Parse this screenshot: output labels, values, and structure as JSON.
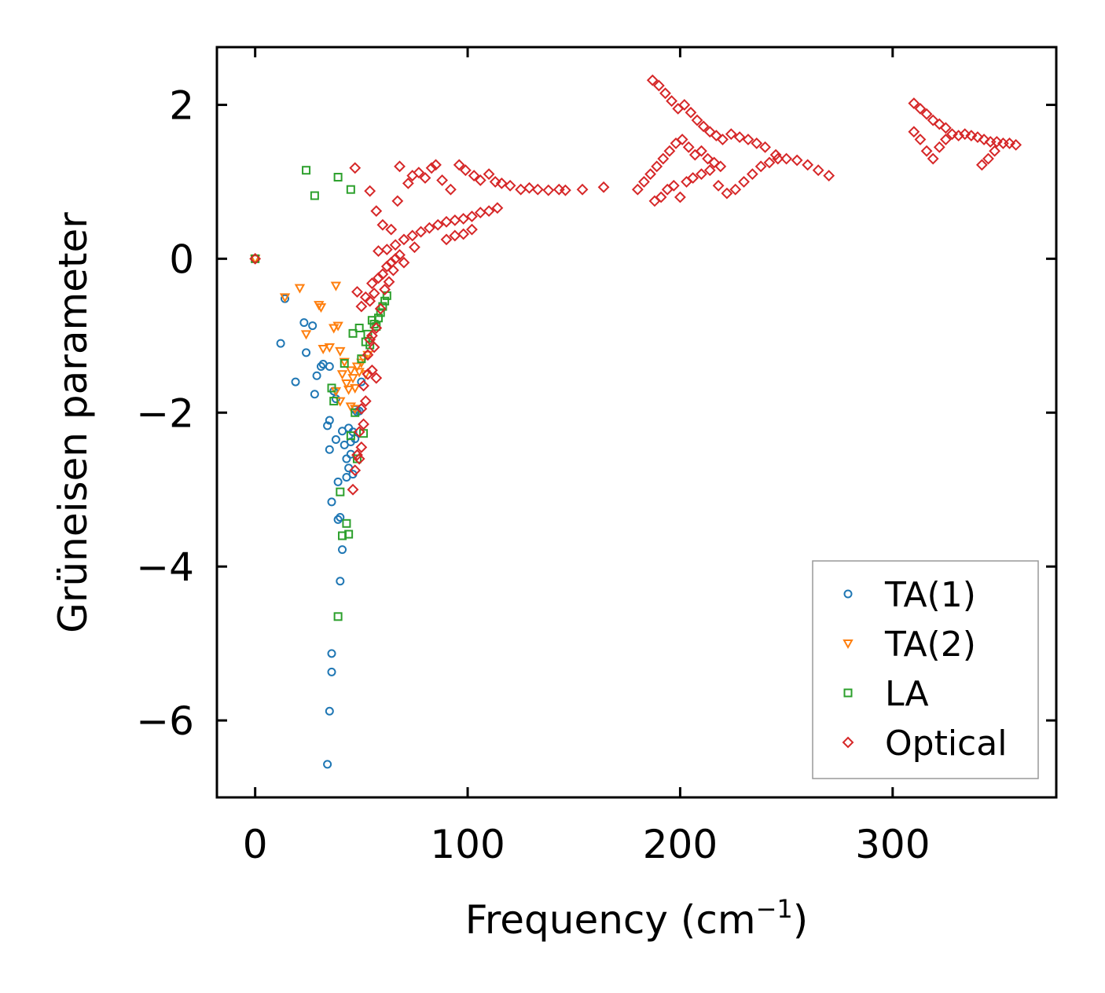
{
  "chart_data": {
    "type": "scatter",
    "xlabel": "Frequency (cm",
    "xlabel_sup": "−1",
    "xlabel_close": ")",
    "ylabel": "Grüneisen parameter",
    "xlim": [
      -18,
      377
    ],
    "ylim": [
      -7.0,
      2.75
    ],
    "xticks": [
      0,
      100,
      200,
      300
    ],
    "xtick_labels": [
      "0",
      "100",
      "200",
      "300"
    ],
    "yticks": [
      -6,
      -4,
      -2,
      0,
      2
    ],
    "ytick_labels": [
      "−6",
      "−4",
      "−2",
      "0",
      "2"
    ],
    "legend_position": "lower-right",
    "series": [
      {
        "name": "TA(1)",
        "marker": "circle",
        "color": "#1f77b4",
        "points": [
          [
            0,
            0
          ],
          [
            12,
            -1.1
          ],
          [
            14,
            -0.52
          ],
          [
            19,
            -1.6
          ],
          [
            23,
            -0.83
          ],
          [
            24,
            -1.22
          ],
          [
            27,
            -0.87
          ],
          [
            28,
            -1.76
          ],
          [
            29,
            -1.52
          ],
          [
            31,
            -1.4
          ],
          [
            32,
            -1.37
          ],
          [
            34,
            -2.17
          ],
          [
            35,
            -2.1
          ],
          [
            35,
            -1.4
          ],
          [
            35,
            -2.48
          ],
          [
            36,
            -3.16
          ],
          [
            36,
            -5.13
          ],
          [
            36,
            -5.37
          ],
          [
            35,
            -5.88
          ],
          [
            34,
            -6.57
          ],
          [
            37,
            -1.72
          ],
          [
            38,
            -1.82
          ],
          [
            38,
            -2.35
          ],
          [
            39,
            -2.9
          ],
          [
            39,
            -3.39
          ],
          [
            40,
            -3.36
          ],
          [
            40,
            -4.19
          ],
          [
            41,
            -3.78
          ],
          [
            41,
            -2.24
          ],
          [
            42,
            -2.42
          ],
          [
            43,
            -2.6
          ],
          [
            43,
            -2.84
          ],
          [
            44,
            -2.72
          ],
          [
            44,
            -2.2
          ],
          [
            45,
            -2.38
          ],
          [
            45,
            -2.54
          ],
          [
            46,
            -2.8
          ],
          [
            46,
            -2.25
          ],
          [
            47,
            -1.96
          ],
          [
            47,
            -2.34
          ],
          [
            48,
            -1.99
          ],
          [
            49,
            -1.98
          ],
          [
            50,
            -1.6
          ]
        ]
      },
      {
        "name": "TA(2)",
        "marker": "triangle-down",
        "color": "#ff7f0e",
        "points": [
          [
            0,
            0
          ],
          [
            14,
            -0.5
          ],
          [
            21,
            -0.38
          ],
          [
            24,
            -0.98
          ],
          [
            30,
            -0.6
          ],
          [
            31,
            -0.63
          ],
          [
            32,
            -1.17
          ],
          [
            35,
            -1.15
          ],
          [
            37,
            -0.9
          ],
          [
            38,
            -0.35
          ],
          [
            39,
            -0.87
          ],
          [
            40,
            -1.2
          ],
          [
            41,
            -1.5
          ],
          [
            42,
            -1.34
          ],
          [
            38,
            -1.72
          ],
          [
            40,
            -1.85
          ],
          [
            43,
            -1.62
          ],
          [
            44,
            -1.7
          ],
          [
            45,
            -1.45
          ],
          [
            46,
            -1.55
          ],
          [
            47,
            -1.68
          ],
          [
            48,
            -1.4
          ],
          [
            49,
            -1.47
          ],
          [
            50,
            -1.35
          ],
          [
            51,
            -1.3
          ],
          [
            52,
            -1.5
          ],
          [
            53,
            -1.25
          ],
          [
            45,
            -1.92
          ],
          [
            47,
            -1.95
          ]
        ]
      },
      {
        "name": "LA",
        "marker": "square",
        "color": "#2ca02c",
        "points": [
          [
            0,
            0
          ],
          [
            24,
            1.15
          ],
          [
            28,
            0.82
          ],
          [
            39,
            1.06
          ],
          [
            45,
            0.9
          ],
          [
            36,
            -1.68
          ],
          [
            37,
            -1.85
          ],
          [
            40,
            -3.03
          ],
          [
            41,
            -3.6
          ],
          [
            43,
            -3.44
          ],
          [
            44,
            -3.58
          ],
          [
            39,
            -4.65
          ],
          [
            42,
            -1.36
          ],
          [
            46,
            -0.97
          ],
          [
            49,
            -0.9
          ],
          [
            50,
            -1.3
          ],
          [
            51,
            -2.27
          ],
          [
            52,
            -1.08
          ],
          [
            53,
            -0.98
          ],
          [
            54,
            -1.12
          ],
          [
            55,
            -0.8
          ],
          [
            56,
            -0.85
          ],
          [
            57,
            -0.88
          ],
          [
            58,
            -0.77
          ],
          [
            59,
            -0.7
          ],
          [
            60,
            -0.62
          ],
          [
            61,
            -0.55
          ],
          [
            62,
            -0.48
          ],
          [
            47,
            -2.0
          ],
          [
            48,
            -2.6
          ],
          [
            45,
            -2.3
          ]
        ]
      },
      {
        "name": "Optical",
        "marker": "diamond",
        "color": "#d62728",
        "points": [
          [
            0,
            0
          ],
          [
            47,
            1.18
          ],
          [
            54,
            0.88
          ],
          [
            57,
            0.62
          ],
          [
            60,
            0.44
          ],
          [
            64,
            0.38
          ],
          [
            67,
            0.75
          ],
          [
            68,
            1.2
          ],
          [
            72,
            0.98
          ],
          [
            74,
            1.08
          ],
          [
            77,
            1.12
          ],
          [
            80,
            1.05
          ],
          [
            83,
            1.18
          ],
          [
            85,
            1.22
          ],
          [
            88,
            1.02
          ],
          [
            92,
            0.9
          ],
          [
            96,
            1.22
          ],
          [
            99,
            1.15
          ],
          [
            103,
            1.08
          ],
          [
            106,
            1.02
          ],
          [
            110,
            1.1
          ],
          [
            113,
            1.0
          ],
          [
            116,
            0.98
          ],
          [
            120,
            0.95
          ],
          [
            125,
            0.9
          ],
          [
            129,
            0.92
          ],
          [
            133,
            0.9
          ],
          [
            138,
            0.89
          ],
          [
            143,
            0.9
          ],
          [
            146,
            0.89
          ],
          [
            154,
            0.9
          ],
          [
            164,
            0.93
          ],
          [
            58,
            0.1
          ],
          [
            62,
            0.12
          ],
          [
            66,
            0.18
          ],
          [
            70,
            0.25
          ],
          [
            74,
            0.3
          ],
          [
            78,
            0.35
          ],
          [
            82,
            0.4
          ],
          [
            86,
            0.44
          ],
          [
            90,
            0.48
          ],
          [
            94,
            0.5
          ],
          [
            98,
            0.52
          ],
          [
            102,
            0.55
          ],
          [
            106,
            0.6
          ],
          [
            110,
            0.62
          ],
          [
            114,
            0.66
          ],
          [
            90,
            0.25
          ],
          [
            94,
            0.3
          ],
          [
            98,
            0.32
          ],
          [
            102,
            0.38
          ],
          [
            48,
            -0.43
          ],
          [
            50,
            -0.62
          ],
          [
            52,
            -0.5
          ],
          [
            54,
            -0.55
          ],
          [
            55,
            -0.32
          ],
          [
            56,
            -0.45
          ],
          [
            58,
            -0.25
          ],
          [
            60,
            -0.2
          ],
          [
            62,
            -0.1
          ],
          [
            64,
            -0.05
          ],
          [
            66,
            0.0
          ],
          [
            68,
            0.05
          ],
          [
            54,
            -1.05
          ],
          [
            56,
            -1.15
          ],
          [
            57,
            -1.55
          ],
          [
            55,
            -1.45
          ],
          [
            53,
            -1.25
          ],
          [
            51,
            -1.65
          ],
          [
            50,
            -1.95
          ],
          [
            49,
            -2.25
          ],
          [
            48,
            -2.55
          ],
          [
            47,
            -2.75
          ],
          [
            46,
            -3.0
          ],
          [
            49,
            -2.6
          ],
          [
            50,
            -2.45
          ],
          [
            51,
            -2.15
          ],
          [
            52,
            -1.85
          ],
          [
            53,
            -1.5
          ],
          [
            55,
            -1.0
          ],
          [
            57,
            -0.9
          ],
          [
            59,
            -0.65
          ],
          [
            61,
            -0.4
          ],
          [
            63,
            -0.3
          ],
          [
            65,
            -0.15
          ],
          [
            70,
            -0.05
          ],
          [
            75,
            0.15
          ],
          [
            187,
            2.32
          ],
          [
            190,
            2.25
          ],
          [
            193,
            2.15
          ],
          [
            196,
            2.05
          ],
          [
            199,
            1.95
          ],
          [
            202,
            2.0
          ],
          [
            205,
            1.9
          ],
          [
            208,
            1.8
          ],
          [
            211,
            1.72
          ],
          [
            214,
            1.65
          ],
          [
            217,
            1.6
          ],
          [
            220,
            1.55
          ],
          [
            224,
            1.62
          ],
          [
            228,
            1.58
          ],
          [
            232,
            1.55
          ],
          [
            236,
            1.5
          ],
          [
            240,
            1.45
          ],
          [
            245,
            1.35
          ],
          [
            250,
            1.3
          ],
          [
            255,
            1.28
          ],
          [
            260,
            1.22
          ],
          [
            265,
            1.15
          ],
          [
            270,
            1.08
          ],
          [
            188,
            0.75
          ],
          [
            191,
            0.8
          ],
          [
            194,
            0.9
          ],
          [
            197,
            0.95
          ],
          [
            200,
            0.8
          ],
          [
            203,
            1.0
          ],
          [
            206,
            1.05
          ],
          [
            210,
            1.1
          ],
          [
            214,
            1.15
          ],
          [
            218,
            0.95
          ],
          [
            222,
            0.85
          ],
          [
            226,
            0.9
          ],
          [
            230,
            1.0
          ],
          [
            234,
            1.1
          ],
          [
            238,
            1.2
          ],
          [
            242,
            1.25
          ],
          [
            246,
            1.3
          ],
          [
            180,
            0.9
          ],
          [
            183,
            1.0
          ],
          [
            186,
            1.1
          ],
          [
            189,
            1.2
          ],
          [
            192,
            1.3
          ],
          [
            195,
            1.4
          ],
          [
            198,
            1.5
          ],
          [
            201,
            1.55
          ],
          [
            204,
            1.45
          ],
          [
            207,
            1.35
          ],
          [
            210,
            1.4
          ],
          [
            213,
            1.3
          ],
          [
            216,
            1.25
          ],
          [
            219,
            1.2
          ],
          [
            310,
            2.02
          ],
          [
            313,
            1.95
          ],
          [
            316,
            1.88
          ],
          [
            319,
            1.8
          ],
          [
            322,
            1.75
          ],
          [
            325,
            1.7
          ],
          [
            328,
            1.62
          ],
          [
            331,
            1.6
          ],
          [
            334,
            1.62
          ],
          [
            337,
            1.6
          ],
          [
            340,
            1.58
          ],
          [
            343,
            1.55
          ],
          [
            346,
            1.52
          ],
          [
            349,
            1.52
          ],
          [
            352,
            1.5
          ],
          [
            355,
            1.5
          ],
          [
            358,
            1.48
          ],
          [
            310,
            1.65
          ],
          [
            313,
            1.55
          ],
          [
            316,
            1.4
          ],
          [
            319,
            1.3
          ],
          [
            322,
            1.45
          ],
          [
            325,
            1.55
          ],
          [
            342,
            1.22
          ],
          [
            345,
            1.3
          ],
          [
            348,
            1.4
          ]
        ]
      }
    ]
  }
}
